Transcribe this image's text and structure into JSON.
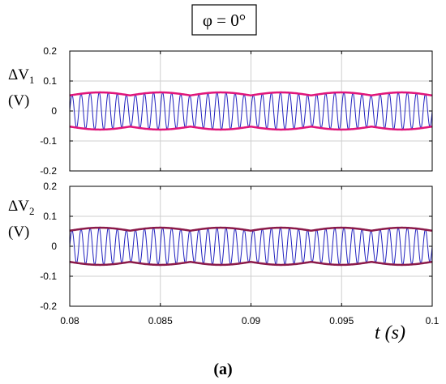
{
  "figure": {
    "title": "φ = 0°",
    "caption": "(a)",
    "x_axis_label": "t (s)"
  },
  "chart_data": [
    {
      "type": "line",
      "ylabel_main": "ΔV",
      "ylabel_sub": "1",
      "ylabel_unit": "(V)",
      "xlim": [
        0.08,
        0.1
      ],
      "ylim": [
        -0.2,
        0.2
      ],
      "x_ticks": [
        "0.08",
        "0.085",
        "0.09",
        "0.095",
        "0.1"
      ],
      "y_ticks": [
        "0.2",
        "0.1",
        "0",
        "-0.1",
        "-0.2"
      ],
      "grid": true,
      "series": [
        {
          "role": "ripple",
          "color": "#1f1fbf",
          "frequency_hz": 2000,
          "amplitude_min": 0.052,
          "amplitude_max": 0.062
        },
        {
          "role": "envelope",
          "color": "#e0157a",
          "upper_min": 0.052,
          "upper_max": 0.062,
          "lower_min": -0.062,
          "lower_max": -0.052,
          "period_s": 0.00333
        }
      ]
    },
    {
      "type": "line",
      "ylabel_main": "ΔV",
      "ylabel_sub": "2",
      "ylabel_unit": "(V)",
      "xlim": [
        0.08,
        0.1
      ],
      "ylim": [
        -0.2,
        0.2
      ],
      "x_ticks": [
        "0.08",
        "0.085",
        "0.09",
        "0.095",
        "0.1"
      ],
      "y_ticks": [
        "0.2",
        "0.1",
        "0",
        "-0.1",
        "-0.2"
      ],
      "grid": true,
      "series": [
        {
          "role": "ripple",
          "color": "#1f1fbf",
          "frequency_hz": 2000,
          "amplitude_min": 0.052,
          "amplitude_max": 0.062
        },
        {
          "role": "envelope",
          "color": "#8b1a4a",
          "upper_min": 0.052,
          "upper_max": 0.062,
          "lower_min": -0.062,
          "lower_max": -0.052,
          "period_s": 0.00333
        }
      ]
    }
  ]
}
